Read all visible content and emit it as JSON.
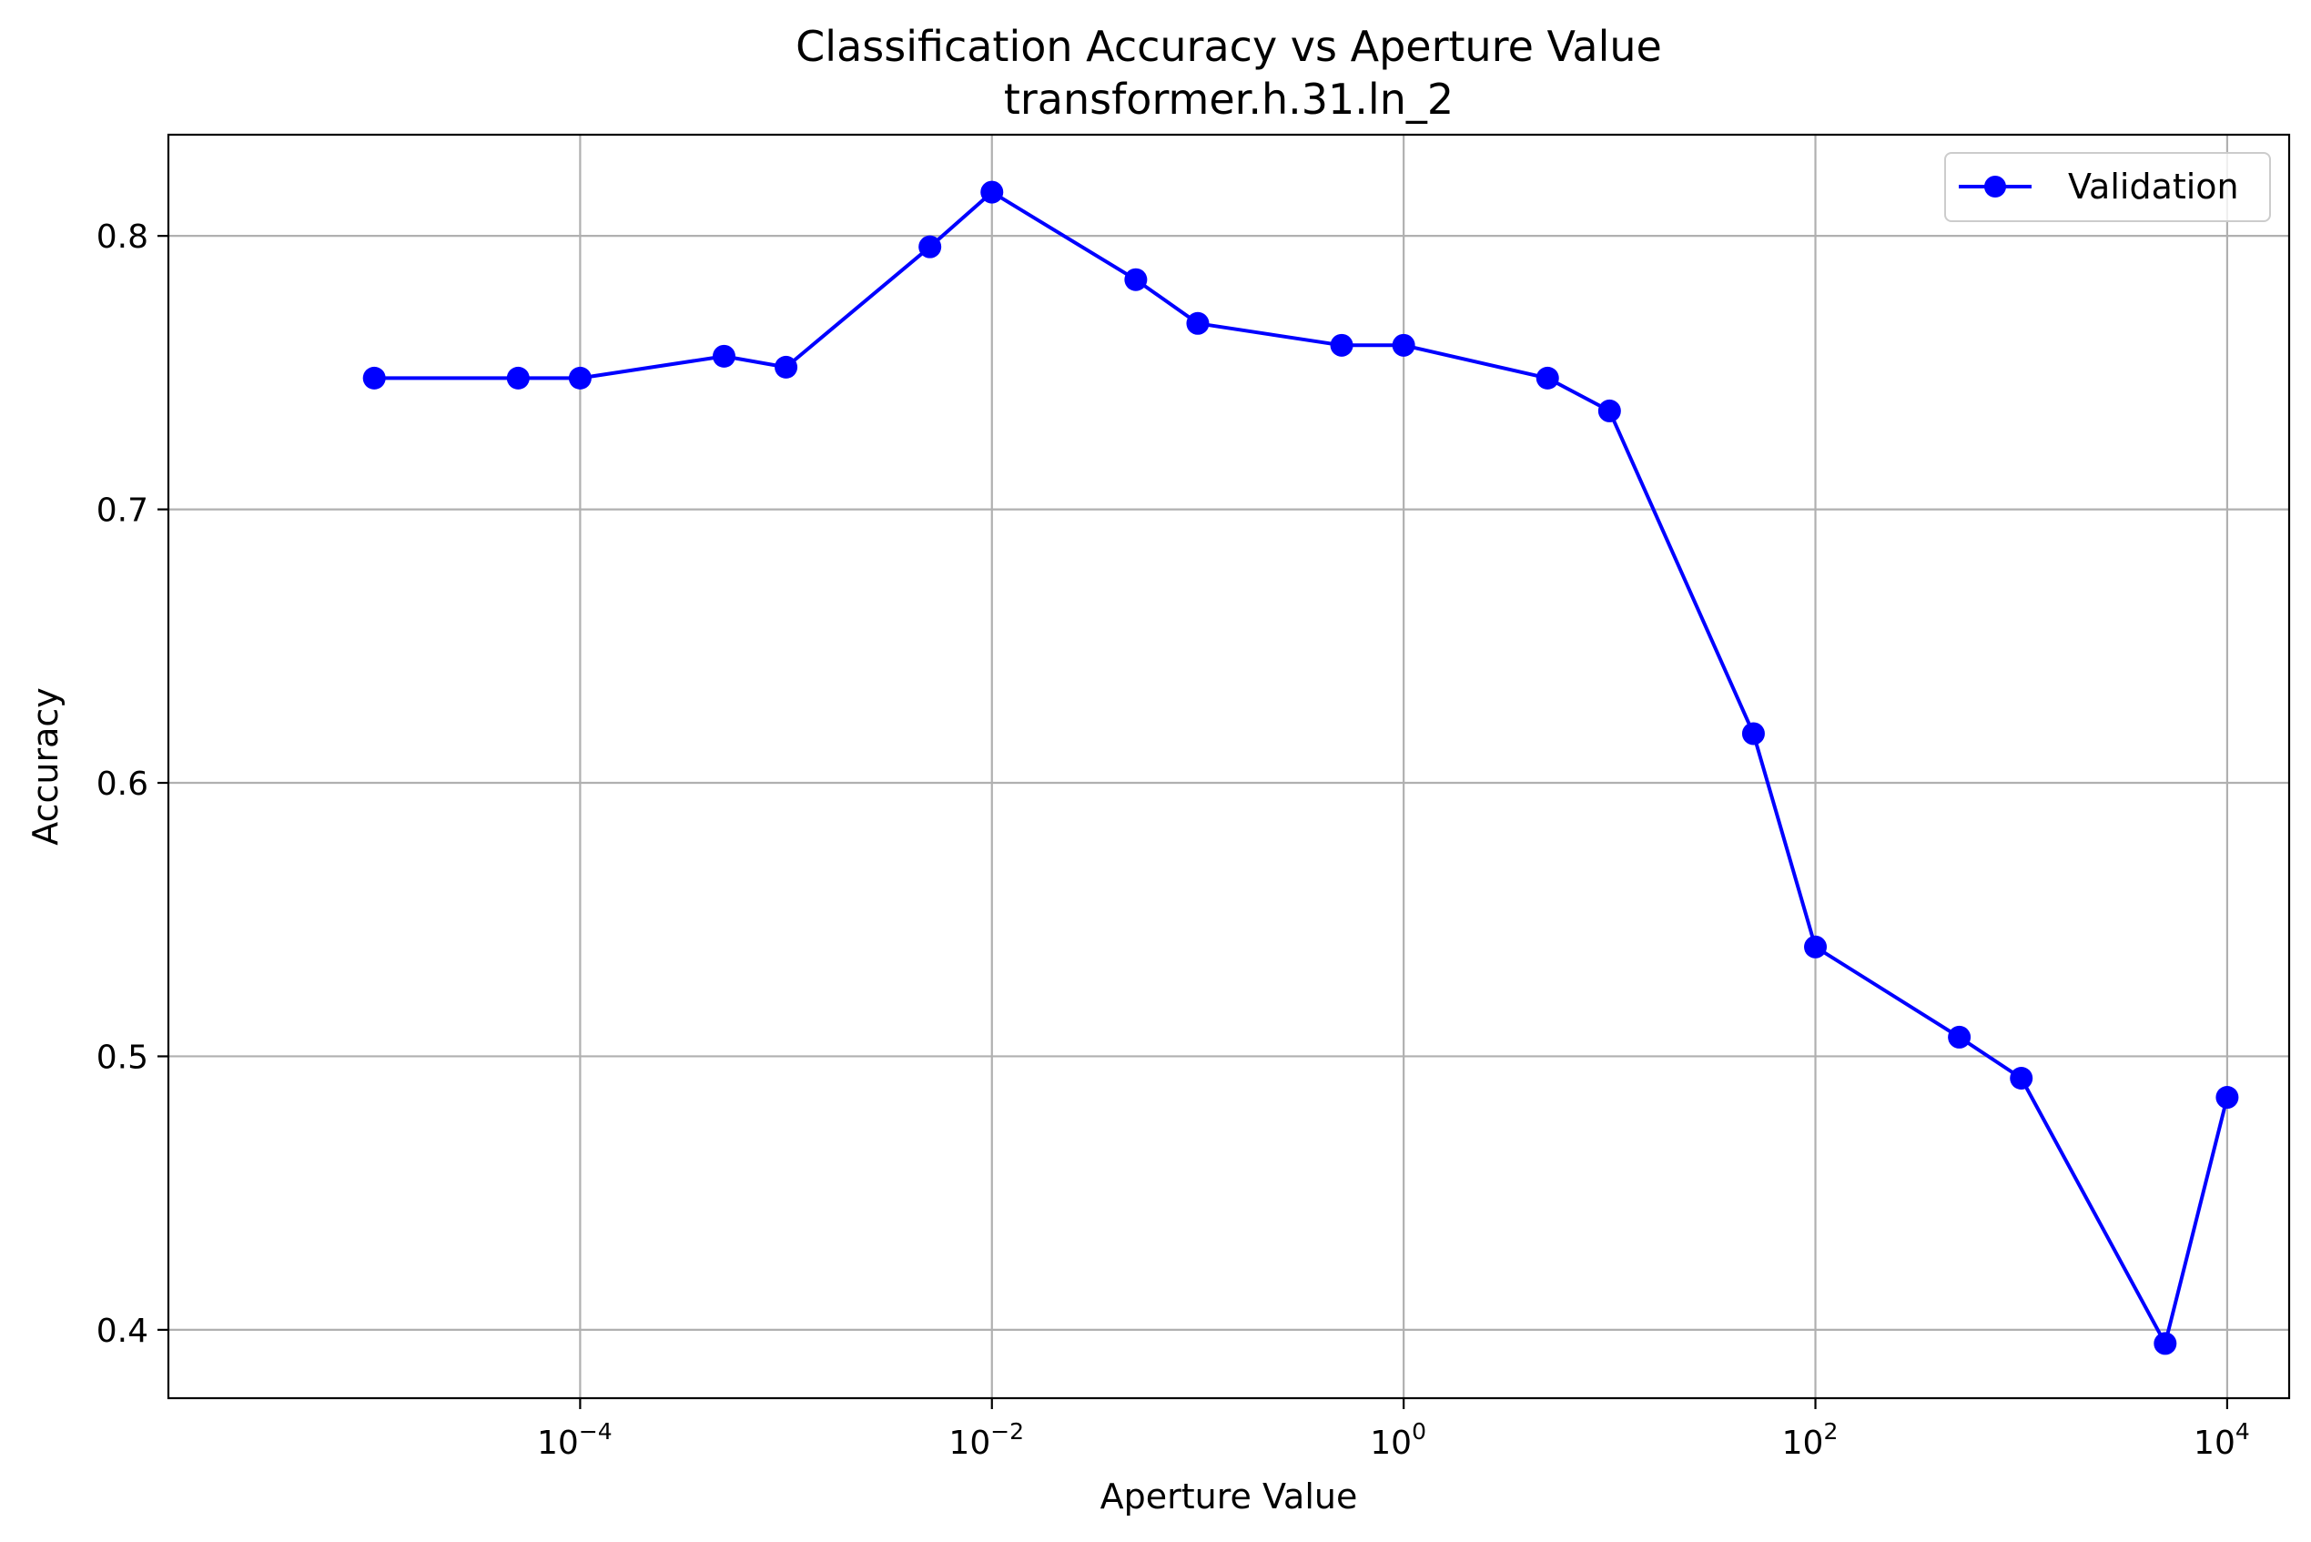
{
  "chart_data": {
    "type": "line",
    "title": "Classification Accuracy vs Aperture Value",
    "subtitle": "transformer.h.31.ln_2",
    "xlabel": "Aperture Value",
    "ylabel": "Accuracy",
    "xscale": "log",
    "xlim": [
      1e-06,
      20000
    ],
    "ylim": [
      0.375,
      0.837
    ],
    "x_ticks": [
      {
        "value": 0.0001,
        "base": "10",
        "exp": "−4"
      },
      {
        "value": 0.01,
        "base": "10",
        "exp": "−2"
      },
      {
        "value": 1,
        "base": "10",
        "exp": "0"
      },
      {
        "value": 100,
        "base": "10",
        "exp": "2"
      },
      {
        "value": 10000,
        "base": "10",
        "exp": "4"
      }
    ],
    "y_ticks": [
      {
        "value": 0.4,
        "label": "0.4"
      },
      {
        "value": 0.5,
        "label": "0.5"
      },
      {
        "value": 0.6,
        "label": "0.6"
      },
      {
        "value": 0.7,
        "label": "0.7"
      },
      {
        "value": 0.8,
        "label": "0.8"
      }
    ],
    "grid": true,
    "legend_position": "top-right",
    "series": [
      {
        "name": "Validation",
        "color": "#0000ff",
        "marker": "circle",
        "x": [
          1e-05,
          5e-05,
          0.0001,
          0.0005,
          0.001,
          0.005,
          0.01,
          0.05,
          0.1,
          0.5,
          1,
          5,
          10,
          50,
          100,
          500,
          1000,
          5000,
          10000
        ],
        "y": [
          0.748,
          0.748,
          0.748,
          0.756,
          0.752,
          0.796,
          0.816,
          0.784,
          0.768,
          0.76,
          0.76,
          0.748,
          0.736,
          0.618,
          0.54,
          0.507,
          0.492,
          0.395,
          0.485
        ]
      }
    ]
  }
}
